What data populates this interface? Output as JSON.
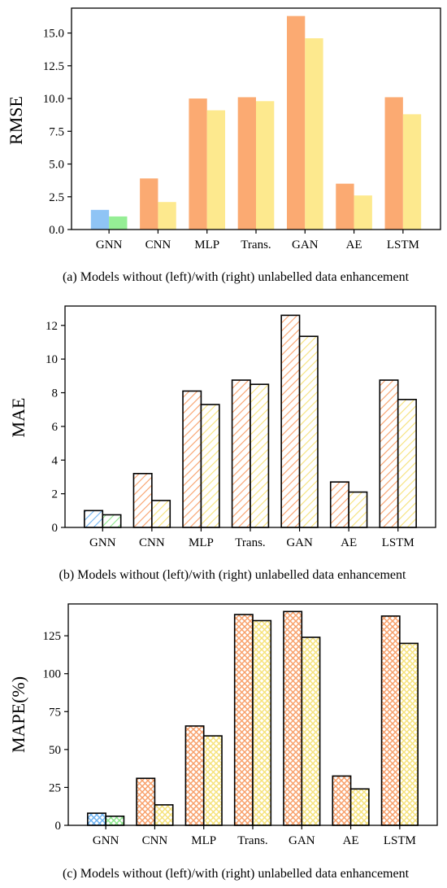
{
  "chart_data": [
    {
      "type": "bar",
      "ylabel": "RMSE",
      "xlabel": "",
      "caption": "(a) Models without (left)/with (right) unlabelled data enhancement",
      "categories": [
        "GNN",
        "CNN",
        "MLP",
        "Trans.",
        "GAN",
        "AE",
        "LSTM"
      ],
      "series": [
        {
          "values": [
            1.5,
            3.9,
            10.0,
            10.1,
            16.3,
            3.5,
            10.1
          ]
        },
        {
          "values": [
            1.0,
            2.1,
            9.1,
            9.8,
            14.6,
            2.6,
            8.8
          ]
        }
      ],
      "ylim": [
        0,
        16.9
      ],
      "yticks": [
        0.0,
        2.5,
        5.0,
        7.5,
        10.0,
        12.5,
        15.0
      ],
      "ytick_labels": [
        "0.0",
        "2.5",
        "5.0",
        "7.5",
        "10.0",
        "12.5",
        "15.0"
      ],
      "style": "solid",
      "colors": {
        "highlight_left": "#8fc4f5",
        "highlight_right": "#95ee95",
        "left": "#fbaa72",
        "right": "#fde98e"
      }
    },
    {
      "type": "bar",
      "ylabel": "MAE",
      "xlabel": "",
      "caption": "(b) Models without (left)/with (right) unlabelled data enhancement",
      "categories": [
        "GNN",
        "CNN",
        "MLP",
        "Trans.",
        "GAN",
        "AE",
        "LSTM"
      ],
      "series": [
        {
          "values": [
            1.0,
            3.2,
            8.1,
            8.75,
            12.6,
            2.7,
            8.75
          ]
        },
        {
          "values": [
            0.75,
            1.6,
            7.3,
            8.5,
            11.35,
            2.1,
            7.6
          ]
        }
      ],
      "ylim": [
        0,
        13.15
      ],
      "yticks": [
        0,
        2,
        4,
        6,
        8,
        10,
        12
      ],
      "ytick_labels": [
        "0",
        "2",
        "4",
        "6",
        "8",
        "10",
        "12"
      ],
      "style": "hatch-diagonal",
      "colors": {
        "highlight_left": "#6eb3f2",
        "highlight_right": "#8ee88e",
        "left": "#f8a06a",
        "right": "#f6e27a"
      }
    },
    {
      "type": "bar",
      "ylabel": "MAPE(%)",
      "xlabel": "",
      "caption": "(c) Models without (left)/with (right) unlabelled data enhancement",
      "categories": [
        "GNN",
        "CNN",
        "MLP",
        "Trans.",
        "GAN",
        "AE",
        "LSTM"
      ],
      "series": [
        {
          "values": [
            8,
            31,
            65.5,
            139,
            141,
            32.5,
            138
          ]
        },
        {
          "values": [
            6,
            13.5,
            59,
            135,
            124,
            24,
            120
          ]
        }
      ],
      "ylim": [
        0,
        146
      ],
      "yticks": [
        0,
        25,
        50,
        75,
        100,
        125
      ],
      "ytick_labels": [
        "0",
        "25",
        "50",
        "75",
        "100",
        "125"
      ],
      "style": "hatch-cross",
      "colors": {
        "highlight_left": "#6eb3f2",
        "highlight_right": "#8ee88e",
        "left": "#f8a06a",
        "right": "#f6e27a"
      }
    }
  ]
}
